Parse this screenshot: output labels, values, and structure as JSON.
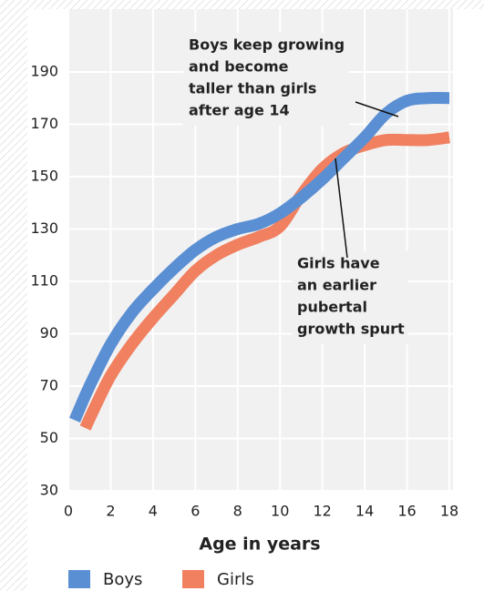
{
  "chart_data": {
    "type": "line",
    "x_label": "Age in years",
    "xlim": [
      0,
      18
    ],
    "xticks": [
      0,
      2,
      4,
      6,
      8,
      10,
      12,
      14,
      16,
      18
    ],
    "ylim": [
      30,
      214
    ],
    "yticks": [
      30,
      50,
      70,
      90,
      110,
      130,
      150,
      170,
      190
    ],
    "grid": true,
    "legend": "bottom",
    "series": [
      {
        "name": "Boys",
        "color": "#5b8fd3",
        "x": [
          0.3,
          1,
          2,
          3,
          4,
          5,
          6,
          7,
          8,
          9,
          10,
          11,
          12,
          13,
          14,
          15,
          16,
          17,
          18
        ],
        "values": [
          57,
          70,
          86,
          98,
          107,
          115,
          122,
          127,
          130,
          132,
          136,
          142,
          149,
          157,
          165,
          174,
          179,
          180,
          180
        ]
      },
      {
        "name": "Girls",
        "color": "#f08060",
        "x": [
          0.8,
          1.2,
          2,
          3,
          4,
          5,
          6,
          7,
          8,
          9,
          10,
          11,
          12,
          13,
          14,
          15,
          16,
          17,
          18
        ],
        "values": [
          54,
          61,
          74,
          86,
          96,
          105,
          114,
          120,
          124,
          127,
          131,
          143,
          153,
          159,
          162,
          164,
          164,
          164,
          165
        ]
      }
    ],
    "annotations": [
      {
        "lines": [
          "Boys keep growing",
          "and become",
          "taller than girls",
          "after age 14"
        ]
      },
      {
        "lines": [
          "Girls have",
          "an earlier",
          "pubertal",
          "growth spurt"
        ]
      }
    ]
  }
}
